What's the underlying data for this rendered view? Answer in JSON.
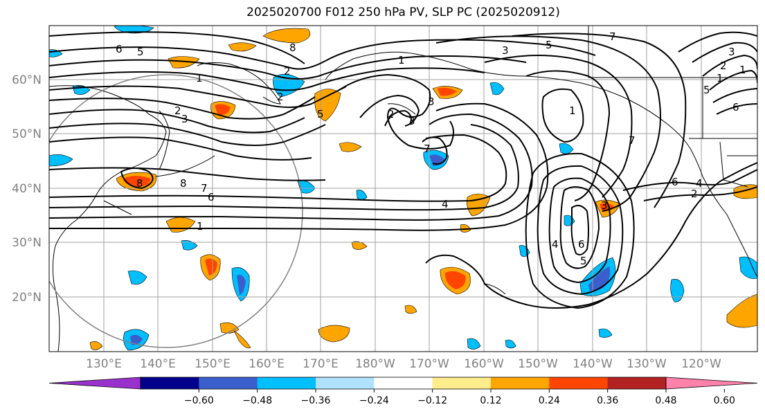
{
  "title": "2025020700 F012 250 hPa PV, SLP PC (2025020912)",
  "lat_labels": [
    "60°N",
    "50°N",
    "40°N",
    "30°N",
    "20°N"
  ],
  "lon_labels": [
    "130°E",
    "140°E",
    "150°E",
    "160°E",
    "170°E",
    "180°W",
    "170°W",
    "160°W",
    "150°W",
    "140°W",
    "130°W",
    "120°W"
  ],
  "colorbar": {
    "ticks": [
      "−0.60",
      "−0.48",
      "−0.36",
      "−0.24",
      "−0.12",
      "0.12",
      "0.24",
      "0.36",
      "0.48",
      "0.60"
    ],
    "colors": [
      "#9932cc",
      "#00008b",
      "#3a5fcd",
      "#00bfff",
      "#b0e2ff",
      "#ffffff",
      "#ffec8b",
      "#ffa500",
      "#ff4500",
      "#b22222",
      "#ff82ab"
    ]
  },
  "contour_labels": [
    "5",
    "6",
    "8",
    "1",
    "3",
    "5",
    "1",
    "2",
    "3",
    "5",
    "2",
    "3",
    "2",
    "2",
    "3",
    "7",
    "8",
    "8",
    "7",
    "6",
    "4",
    "1",
    "4",
    "6",
    "5",
    "1",
    "7",
    "6",
    "4",
    "2",
    "7",
    "3",
    "5",
    "6",
    "1",
    "2",
    "1",
    "3"
  ]
}
